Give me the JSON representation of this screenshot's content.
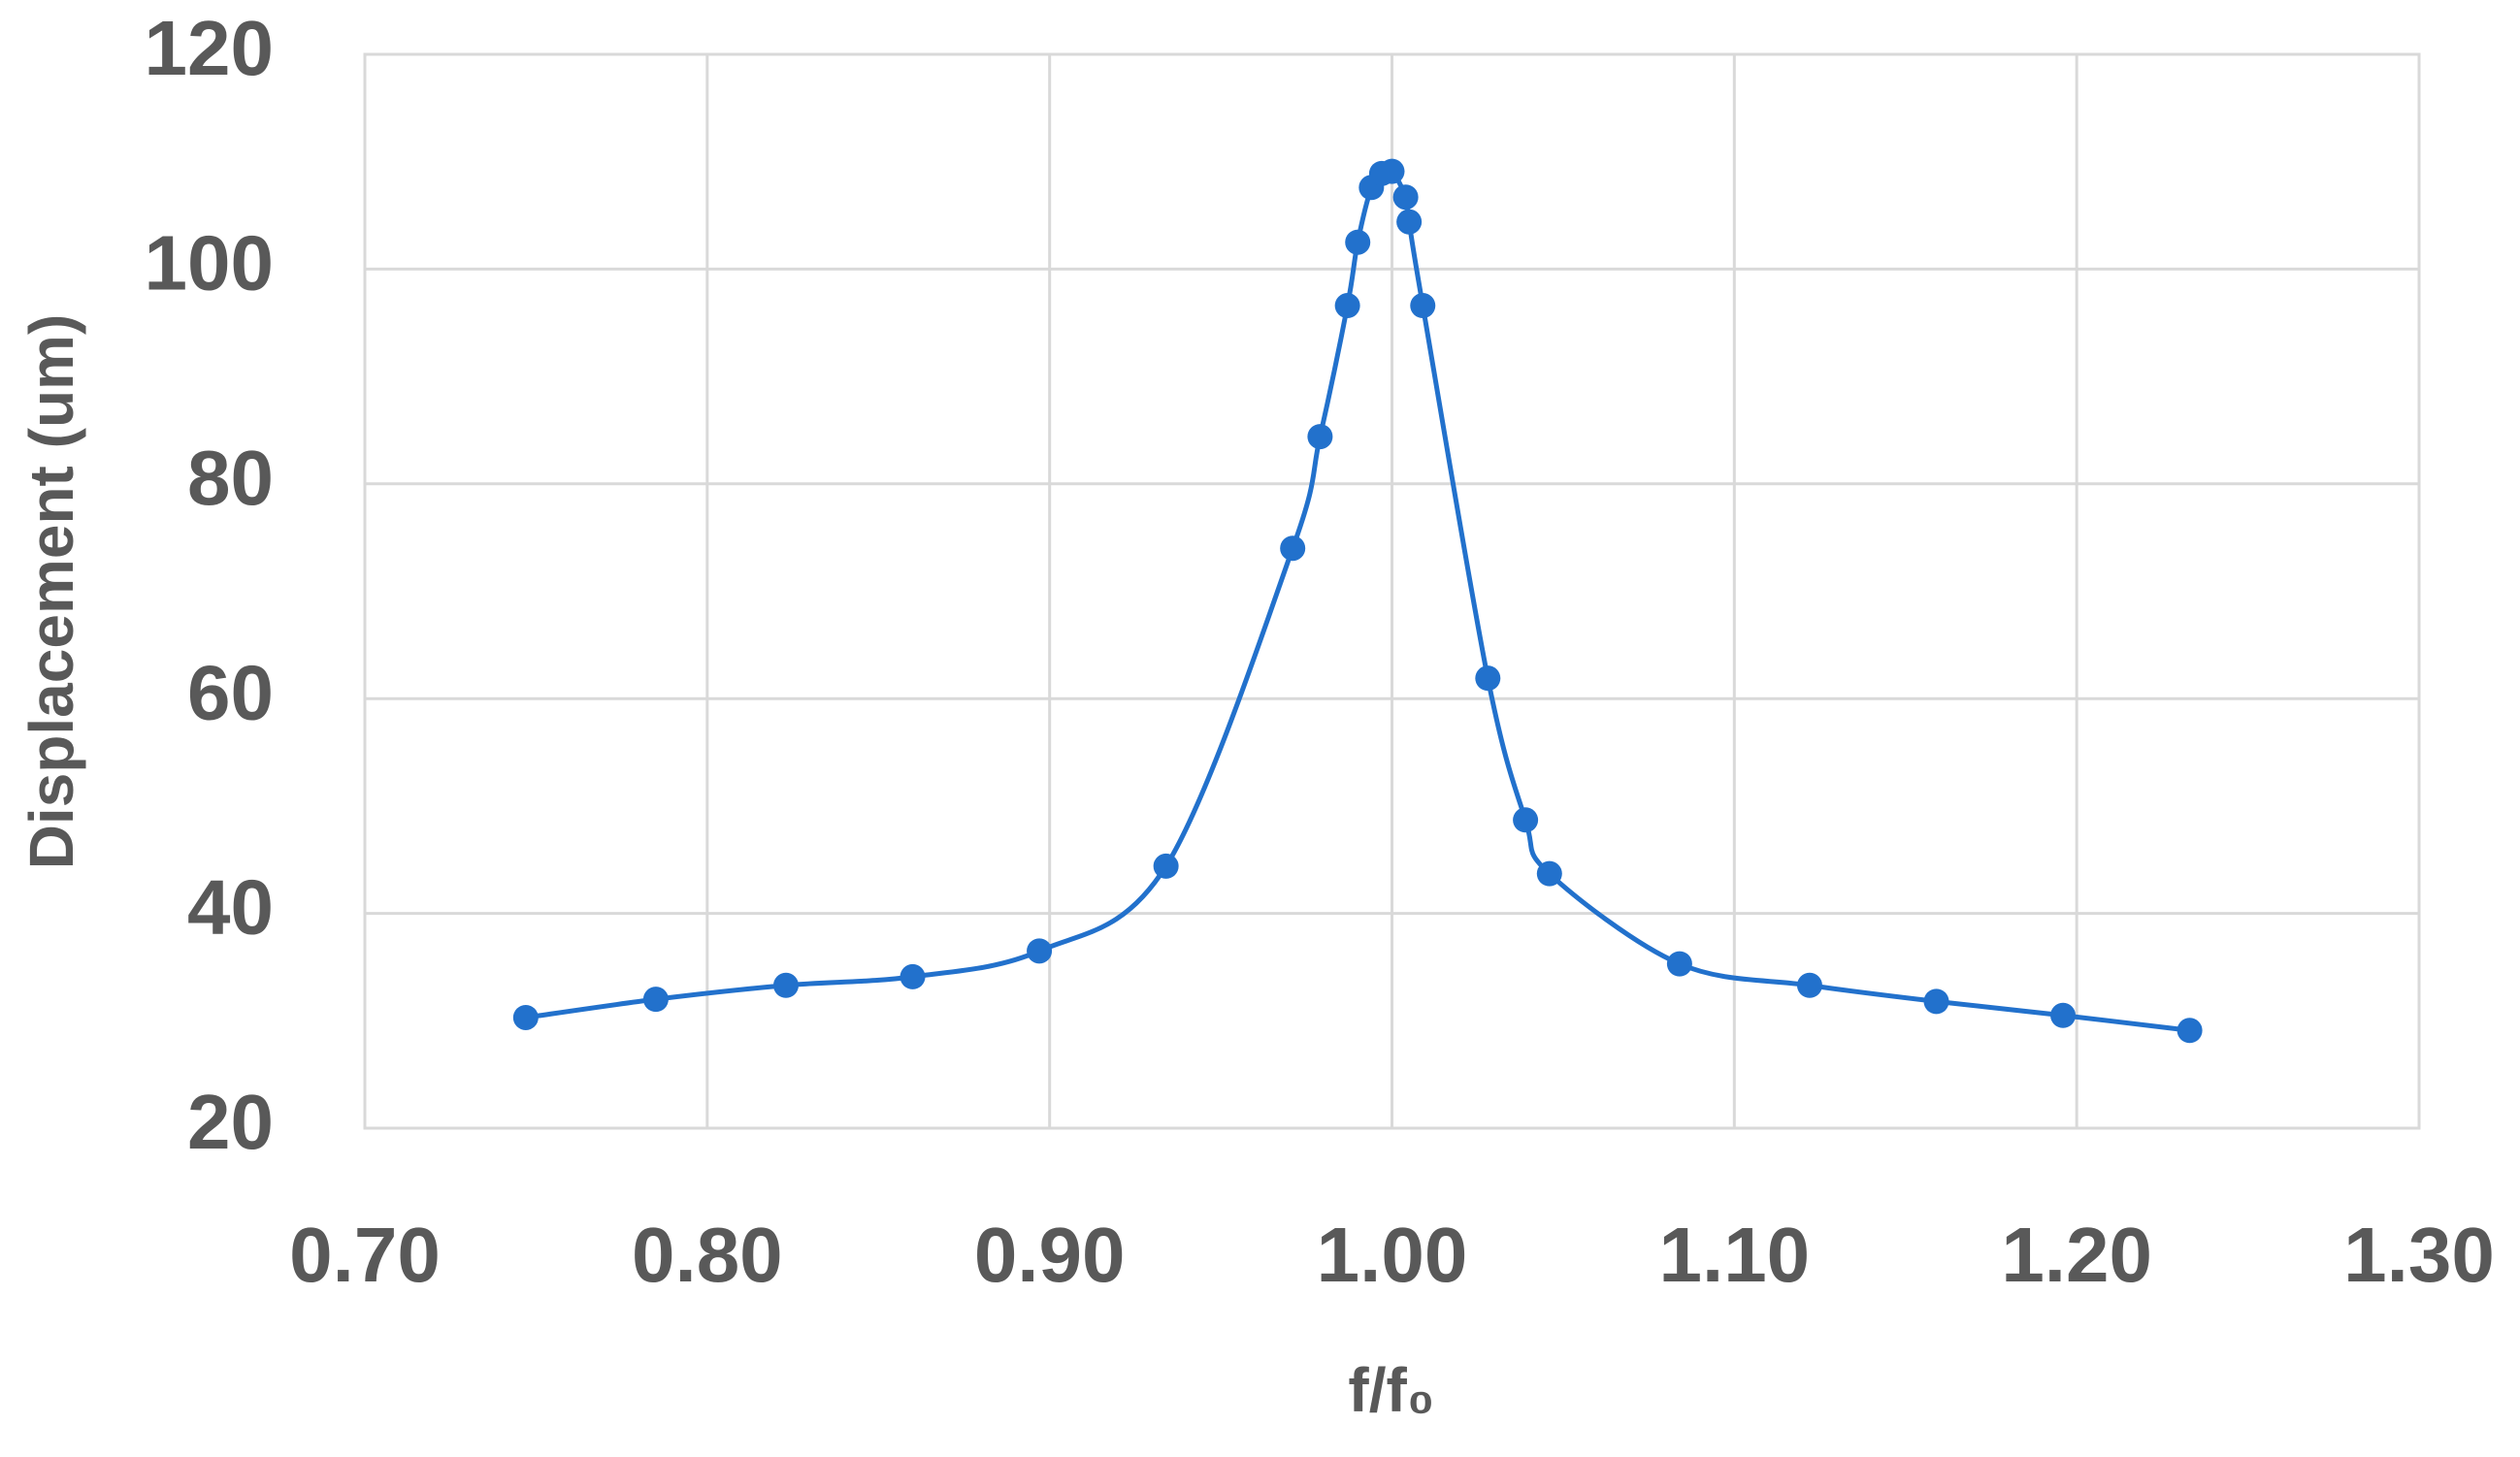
{
  "chart_data": {
    "type": "line",
    "x_label": "f/f₀",
    "y_label": "Displacement (um)",
    "x": [
      0.747,
      0.785,
      0.823,
      0.86,
      0.897,
      0.934,
      0.971,
      0.979,
      0.987,
      0.99,
      0.994,
      0.997,
      1.0,
      1.004,
      1.005,
      1.009,
      1.028,
      1.039,
      1.046,
      1.084,
      1.122,
      1.159,
      1.196,
      1.233
    ],
    "values": [
      30.3,
      32.0,
      33.3,
      34.1,
      36.5,
      44.4,
      74.0,
      84.4,
      96.6,
      102.5,
      107.6,
      108.9,
      109.1,
      106.7,
      104.4,
      96.6,
      61.9,
      48.7,
      43.7,
      35.3,
      33.3,
      31.8,
      30.5,
      29.1
    ],
    "color": "#2271cc",
    "xlim": [
      0.7,
      1.3
    ],
    "xticks": [
      {
        "value": 0.7,
        "label": "0.70"
      },
      {
        "value": 0.8,
        "label": "0.80"
      },
      {
        "value": 0.9,
        "label": "0.90"
      },
      {
        "value": 1.0,
        "label": "1.00"
      },
      {
        "value": 1.1,
        "label": "1.10"
      },
      {
        "value": 1.2,
        "label": "1.20"
      },
      {
        "value": 1.3,
        "label": "1.30"
      }
    ],
    "ylim": [
      20,
      120
    ],
    "yticks": [
      20,
      40,
      60,
      80,
      100,
      120
    ],
    "grid": true
  }
}
